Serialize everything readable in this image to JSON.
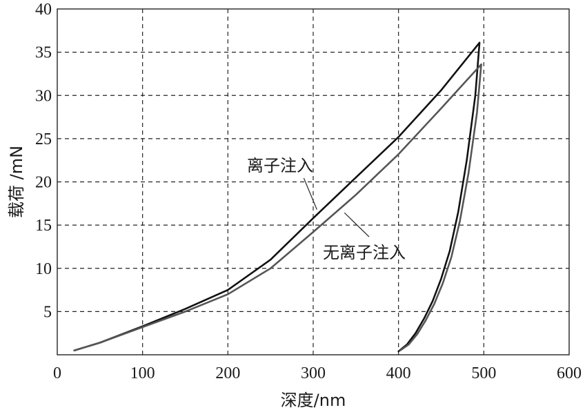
{
  "chart_data": {
    "type": "line",
    "xlabel": "深度/nm",
    "ylabel": "载荷 /mN",
    "xlim": [
      0,
      600
    ],
    "ylim": [
      0,
      40
    ],
    "xticks": [
      "0",
      "100",
      "200",
      "300",
      "400",
      "500",
      "600"
    ],
    "yticks": [
      "5",
      "10",
      "15",
      "20",
      "25",
      "30",
      "35",
      "40"
    ],
    "grid": true,
    "series": [
      {
        "name": "离子注入",
        "color": "#111111",
        "x": [
          20,
          50,
          100,
          150,
          200,
          250,
          300,
          350,
          400,
          450,
          495,
          490,
          480,
          470,
          460,
          450,
          440,
          430,
          420,
          410,
          400
        ],
        "y": [
          0.5,
          1.4,
          3.3,
          5.3,
          7.5,
          11.0,
          15.8,
          20.5,
          25.2,
          30.6,
          36.1,
          30.0,
          22.5,
          16.5,
          12.0,
          8.8,
          6.2,
          4.2,
          2.5,
          1.2,
          0.4
        ]
      },
      {
        "name": "无离子注入",
        "color": "#555555",
        "x": [
          20,
          50,
          100,
          150,
          200,
          250,
          300,
          350,
          400,
          450,
          497,
          492,
          482,
          472,
          462,
          452,
          442,
          432,
          422,
          412,
          402
        ],
        "y": [
          0.5,
          1.4,
          3.2,
          5.0,
          7.0,
          10.0,
          14.2,
          18.5,
          23.2,
          28.5,
          33.6,
          28.0,
          21.0,
          15.5,
          11.3,
          8.3,
          5.9,
          4.0,
          2.4,
          1.2,
          0.5
        ]
      }
    ],
    "annotations": [
      {
        "text": "离子注入",
        "series": 0,
        "at_x": 310,
        "at_y": 17.2
      },
      {
        "text": "无离子注入",
        "series": 1,
        "at_x": 335,
        "at_y": 16.9
      }
    ]
  }
}
